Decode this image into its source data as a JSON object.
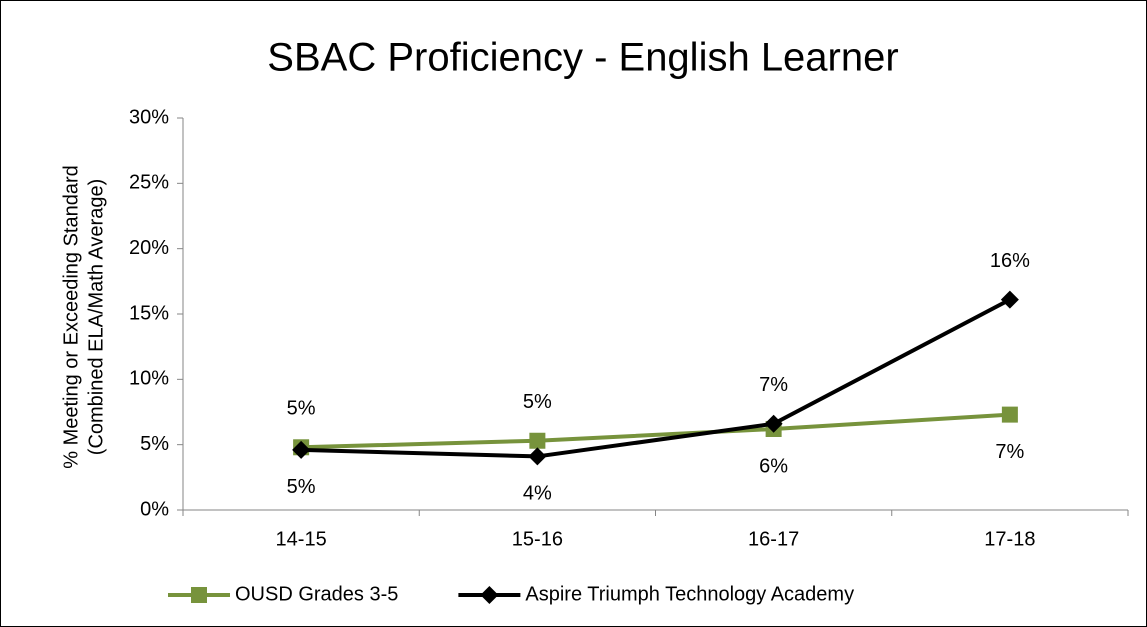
{
  "chart_data": {
    "type": "line",
    "title": "SBAC Proficiency - English Learner",
    "ylabel": [
      "% Meeting or Exceeding Standard",
      "(Combined ELA/Math Average)"
    ],
    "categories": [
      "14-15",
      "15-16",
      "16-17",
      "17-18"
    ],
    "series": [
      {
        "name": "OUSD Grades 3-5",
        "color": "#77933c",
        "marker": "square",
        "values": [
          4.8,
          5.3,
          6.2,
          7.3
        ],
        "value_labels": [
          "5%",
          "5%",
          "6%",
          "7%"
        ]
      },
      {
        "name": "Aspire Triumph Technology Academy",
        "color": "#000000",
        "marker": "diamond",
        "values": [
          4.6,
          4.1,
          6.6,
          16.1
        ],
        "value_labels": [
          "5%",
          "4%",
          "7%",
          "16%"
        ]
      }
    ],
    "ylim": [
      0,
      30
    ],
    "yticks": [
      {
        "value": 0,
        "label": "0%"
      },
      {
        "value": 5,
        "label": "5%"
      },
      {
        "value": 10,
        "label": "10%"
      },
      {
        "value": 15,
        "label": "15%"
      },
      {
        "value": 20,
        "label": "20%"
      },
      {
        "value": 25,
        "label": "25%"
      },
      {
        "value": 30,
        "label": "30%"
      }
    ],
    "legend": "bottom"
  }
}
